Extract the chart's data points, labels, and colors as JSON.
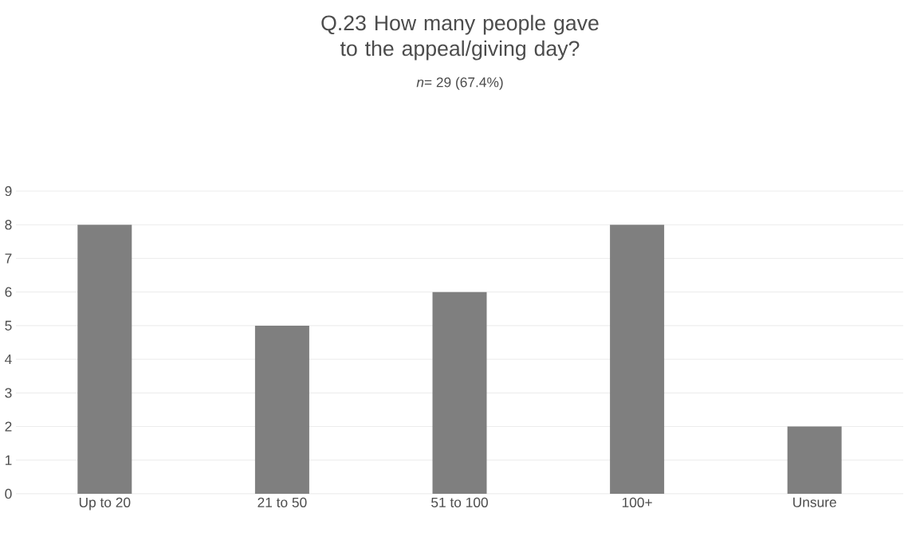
{
  "chart_data": {
    "type": "bar",
    "title": "Q.23 How many people gave to the appeal/giving day?",
    "subtitle": "*n*= 29 (67.4%)",
    "categories": [
      "Up to 20",
      "21 to 50",
      "51 to 100",
      "100+",
      "Unsure"
    ],
    "values": [
      8,
      5,
      6,
      8,
      2
    ],
    "color": "#7f7f7f",
    "ylim": [
      0,
      9
    ],
    "yticks": [
      0,
      1,
      2,
      3,
      4,
      5,
      6,
      7,
      8,
      9
    ],
    "grid": "y"
  }
}
